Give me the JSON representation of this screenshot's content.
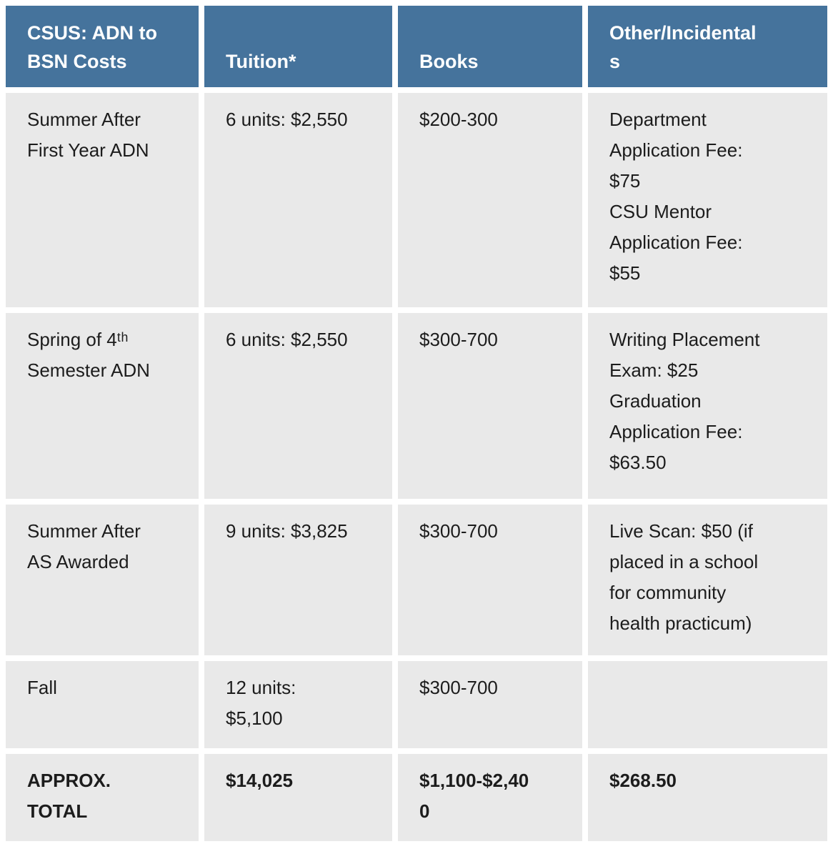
{
  "colors": {
    "header_bg": "#45739c",
    "header_text": "#ffffff",
    "cell_bg": "#e9e9e9",
    "body_text": "#1c1c1c"
  },
  "table": {
    "headers": {
      "costs": "CSUS: ADN to BSN Costs",
      "tuition": "Tuition*",
      "books": "Books",
      "other": "Other/Incidentals"
    },
    "rows": [
      {
        "label": "Summer After First Year ADN",
        "tuition": "6 units: $2,550",
        "books": "$200-300",
        "other": [
          "Department Application Fee: $75",
          "CSU Mentor Application Fee: $55"
        ]
      },
      {
        "label": "Spring of 4ᵗʰ Semester ADN",
        "tuition": "6 units: $2,550",
        "books": "$300-700",
        "other": [
          "Writing Placement Exam: $25",
          "Graduation Application Fee: $63.50"
        ]
      },
      {
        "label": "Summer After AS Awarded",
        "tuition": "9 units: $3,825",
        "books": "$300-700",
        "other": [
          "Live Scan: $50 (if placed in a school for community health practicum)"
        ]
      },
      {
        "label": "Fall",
        "tuition": "12 units: $5,100",
        "books": "$300-700",
        "other": []
      },
      {
        "label": "APPROX. TOTAL",
        "tuition": "$14,025",
        "books": "$1,100-$2,400",
        "other": [
          "$268.50"
        ]
      }
    ]
  }
}
